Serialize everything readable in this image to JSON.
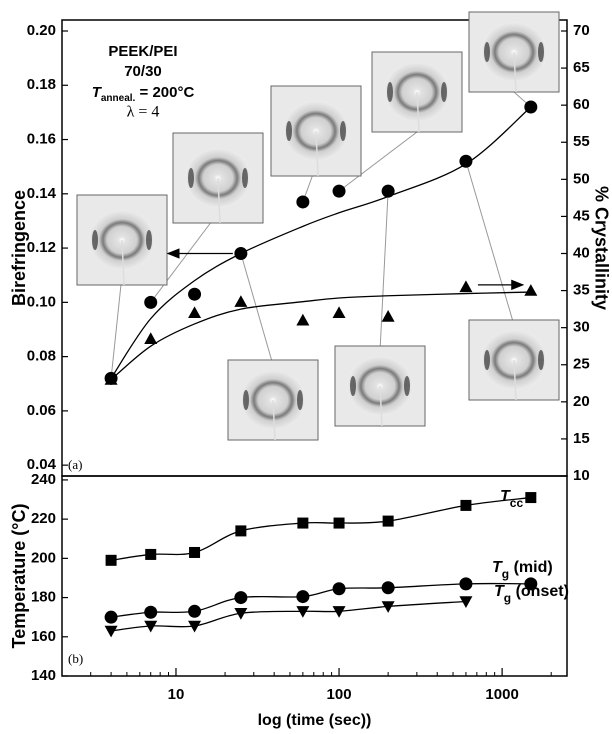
{
  "chart_data": [
    {
      "type": "scatter",
      "x": [
        4,
        7,
        13,
        25,
        60,
        100,
        200,
        600,
        1500
      ],
      "xlim": [
        2,
        2500
      ],
      "log_x": true,
      "ylim": [
        0.036,
        0.2
      ],
      "yticks": [
        0.04,
        0.06,
        0.08,
        {
          "value": 0.1,
          "label": "0.10"
        },
        0.12,
        0.14,
        0.16,
        0.18,
        {
          "value": 0.2,
          "label": "0.20"
        }
      ],
      "y2lim": [
        10,
        70
      ],
      "y2ticks": [
        10,
        15,
        20,
        25,
        30,
        35,
        40,
        45,
        50,
        55,
        60,
        65,
        70
      ],
      "y_label": "Birefringence",
      "y2_label": "% Crystallinity",
      "panel_label": "(a)",
      "annotations": [
        "PEEK/PEI",
        "70/30"
      ],
      "anneal": {
        "main": "T",
        "sub": "anneal.",
        "rest": " = 200°C"
      },
      "draw_ratio": "λ = 4",
      "series": [
        {
          "marker": "circle",
          "color": "#000000",
          "values": [
            0.072,
            0.1,
            0.103,
            0.118,
            0.137,
            0.141,
            0.141,
            0.152,
            0.172
          ],
          "fit_values": [
            0.072,
            0.094,
            0.108,
            0.118,
            0.128,
            0.133,
            0.139,
            0.151,
            0.172
          ]
        },
        {
          "marker": "triangle",
          "color": "#000000",
          "axis": "y2",
          "values": [
            23,
            28.5,
            32,
            33.5,
            31,
            32,
            31.5,
            35.5,
            35
          ],
          "fit_values": [
            23,
            27.5,
            30.5,
            32.5,
            33.5,
            34,
            34.3,
            34.6,
            34.8
          ]
        }
      ]
    },
    {
      "type": "line",
      "x": [
        4,
        7,
        13,
        25,
        60,
        100,
        200,
        600,
        1500
      ],
      "xlim": [
        2,
        2500
      ],
      "log_x": true,
      "xticks": [
        10,
        100,
        1000
      ],
      "ylim": [
        140,
        242
      ],
      "yticks": [
        140,
        160,
        180,
        200,
        220,
        240
      ],
      "y_label": "Temperature (°C)",
      "x_label": "log (time (sec))",
      "panel_label": "(b)",
      "series": [
        {
          "label": [
            "T",
            "cc"
          ],
          "marker": "square",
          "color": "#000000",
          "values": [
            199,
            202,
            203,
            214,
            218,
            218,
            219,
            227,
            231
          ]
        },
        {
          "label": [
            "T",
            "g",
            " (mid)"
          ],
          "marker": "circle",
          "color": "#000000",
          "values": [
            170,
            172.5,
            173,
            180,
            180.5,
            184.5,
            185,
            187,
            187
          ]
        },
        {
          "label": [
            "T",
            "g",
            " (onset)"
          ],
          "marker": "triangle-down",
          "color": "#000000",
          "values": [
            163,
            165.5,
            165.5,
            172,
            173,
            173,
            175.5,
            178,
            null
          ]
        }
      ]
    }
  ]
}
